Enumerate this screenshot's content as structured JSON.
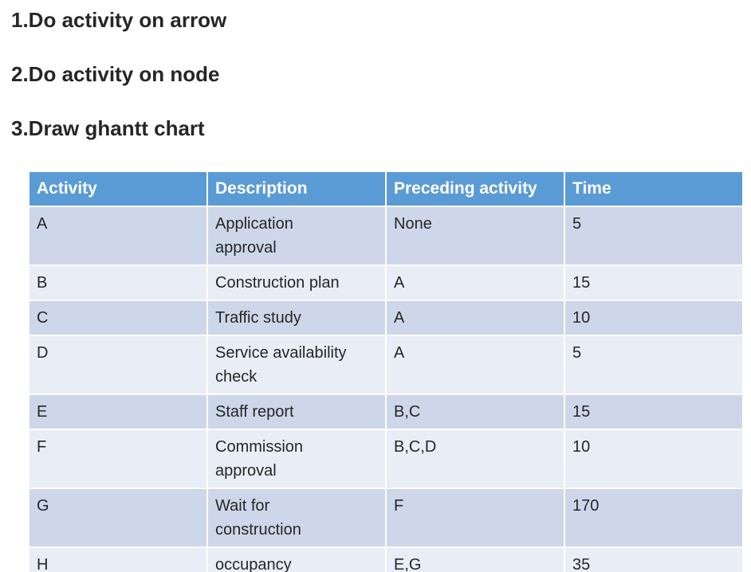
{
  "instructions": [
    "1.Do activity on arrow",
    "2.Do activity on node",
    "3.Draw ghantt chart"
  ],
  "table": {
    "columns": [
      "Activity",
      "Description",
      "Preceding activity",
      "Time"
    ],
    "rows": [
      {
        "activity": "A",
        "description": "Application\napproval",
        "preceding": "None",
        "time": "5"
      },
      {
        "activity": "B",
        "description": "Construction plan",
        "preceding": "A",
        "time": "15"
      },
      {
        "activity": "C",
        "description": "Traffic study",
        "preceding": "A",
        "time": "10"
      },
      {
        "activity": "D",
        "description": "Service availability\ncheck",
        "preceding": "A",
        "time": "5"
      },
      {
        "activity": "E",
        "description": "Staff report",
        "preceding": "B,C",
        "time": "15"
      },
      {
        "activity": "F",
        "description": "Commission\napproval",
        "preceding": "B,C,D",
        "time": "10"
      },
      {
        "activity": "G",
        "description": "Wait for\nconstruction",
        "preceding": "F",
        "time": "170"
      },
      {
        "activity": "H",
        "description": "occupancy",
        "preceding": "E,G",
        "time": "35"
      }
    ]
  },
  "colors": {
    "page_bg": "#FFFFFF",
    "header_bg": "#5B9BD5",
    "header_text": "#FFFFFF",
    "band_dark": "#CDD7E9",
    "band_light": "#E9EDF5",
    "body_text": "#262626"
  }
}
